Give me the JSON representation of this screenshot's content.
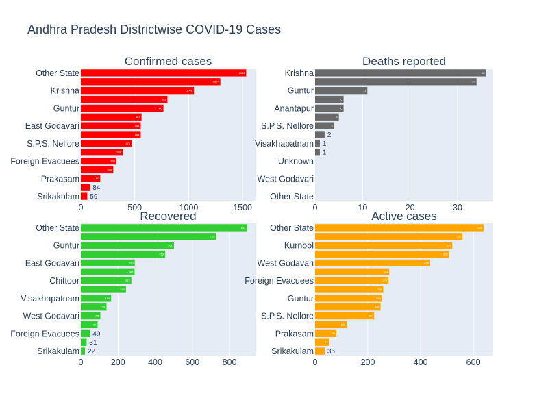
{
  "title": "Andhra Pradesh Districtwise COVID-19 Cases",
  "chart_data": [
    {
      "type": "bar",
      "orientation": "horizontal",
      "title": "Confirmed cases",
      "color": "#ff0000",
      "xlim": [
        0,
        1620
      ],
      "xticks": [
        0,
        500,
        1000,
        1500
      ],
      "categories": [
        "Other State",
        "",
        "Krishna",
        "",
        "Guntur",
        "",
        "East Godavari",
        "",
        "S.P.S. Nellore",
        "",
        "Foreign Evacuees",
        "",
        "Prakasam",
        "",
        "Srikakulam"
      ],
      "values": [
        1533,
        1294,
        1048,
        803,
        766,
        563,
        555,
        555,
        471,
        388,
        330,
        300,
        180,
        84,
        59
      ]
    },
    {
      "type": "bar",
      "orientation": "horizontal",
      "title": "Deaths reported",
      "color": "#696969",
      "xlim": [
        0,
        37.5
      ],
      "xticks": [
        0,
        10,
        20,
        30
      ],
      "categories": [
        "Krishna",
        "",
        "Guntur",
        "",
        "Anantapur",
        "",
        "S.P.S. Nellore",
        "",
        "Visakhapatnam",
        "",
        "Unknown",
        "",
        "West Godavari",
        "",
        "Other State"
      ],
      "values": [
        36,
        34,
        11,
        6,
        6,
        5,
        4,
        2,
        1,
        1,
        0,
        0,
        0,
        0,
        0
      ]
    },
    {
      "type": "bar",
      "orientation": "horizontal",
      "title": "Recovered",
      "color": "#32cd32",
      "xlim": [
        0,
        940
      ],
      "xticks": [
        0,
        200,
        400,
        600,
        800
      ],
      "categories": [
        "Other State",
        "",
        "Guntur",
        "",
        "East Godavari",
        "",
        "Chittoor",
        "",
        "Visakhapatnam",
        "",
        "West Godavari",
        "",
        "Foreign Evacuees",
        "",
        "Srikakulam"
      ],
      "values": [
        894,
        728,
        501,
        453,
        290,
        289,
        272,
        243,
        163,
        138,
        105,
        90,
        49,
        31,
        22
      ]
    },
    {
      "type": "bar",
      "orientation": "horizontal",
      "title": "Active cases",
      "color": "#ffa500",
      "xlim": [
        0,
        675
      ],
      "xticks": [
        0,
        200,
        400,
        600
      ],
      "categories": [
        "Other State",
        "",
        "Kurnool",
        "",
        "West Godavari",
        "",
        "Foreign Evacuees",
        "",
        "Guntur",
        "",
        "S.P.S. Nellore",
        "",
        "Prakasam",
        "",
        "Srikakulam"
      ],
      "values": [
        639,
        558,
        520,
        508,
        436,
        281,
        278,
        258,
        254,
        248,
        224,
        120,
        80,
        53,
        36
      ]
    }
  ]
}
